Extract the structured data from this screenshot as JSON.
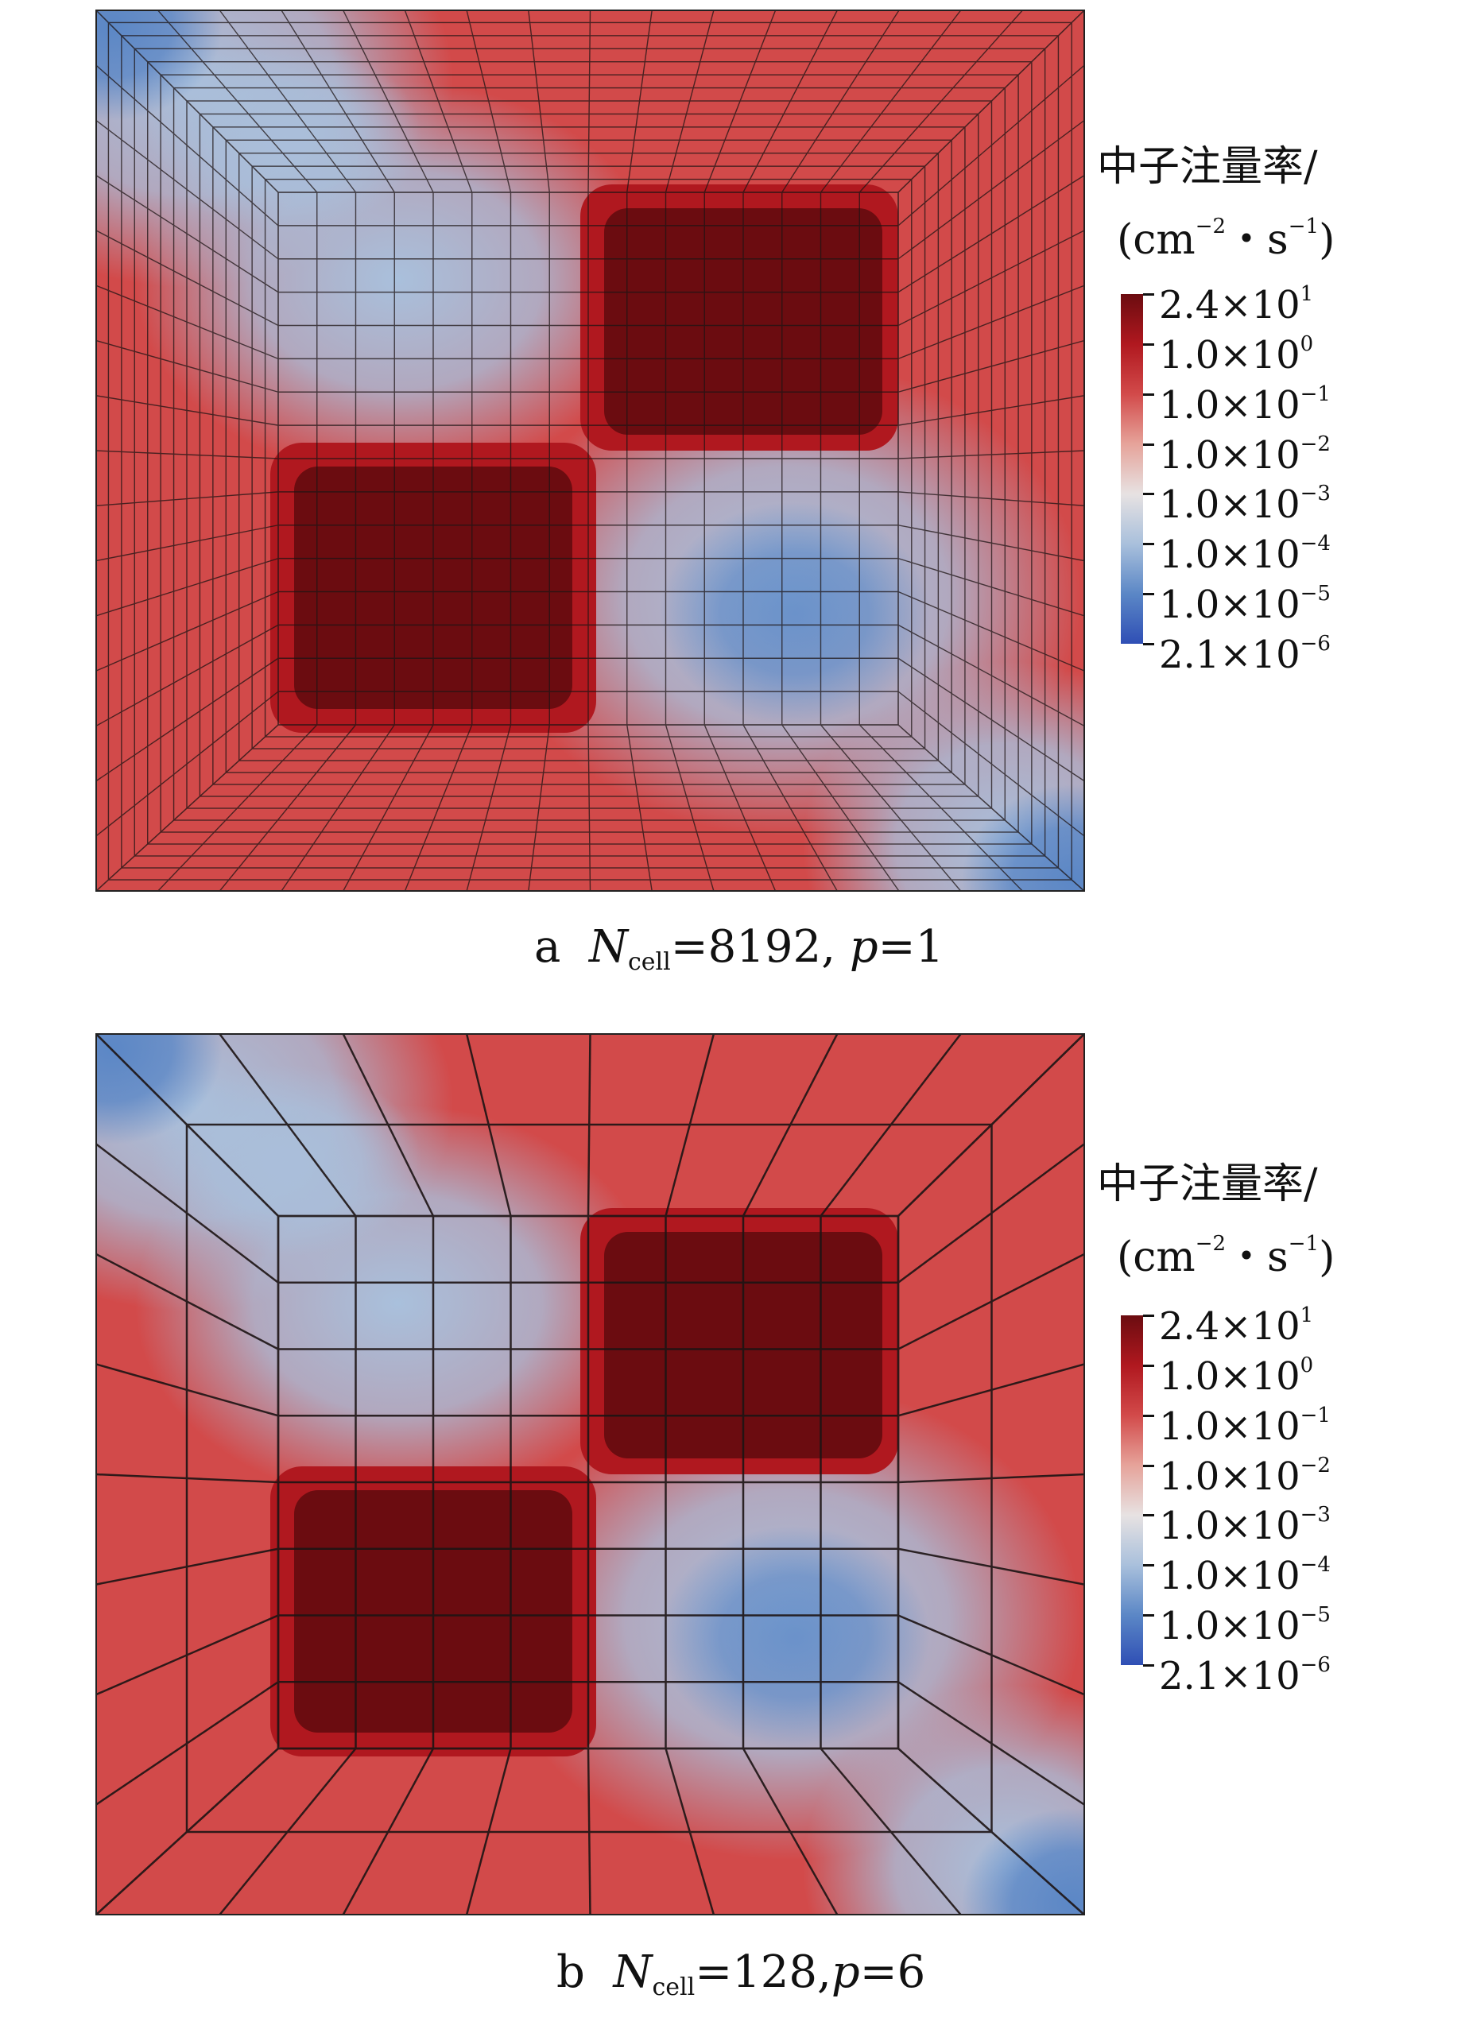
{
  "chart_data": [
    {
      "type": "heatmap",
      "panel_label": "a",
      "caption": {
        "letter": "a",
        "var_symbol": "N",
        "var_subscript": "cell",
        "var_value": "=8192,",
        "param_symbol": "p",
        "param_value": "=1"
      },
      "colorbar": {
        "title": "中子注量率/",
        "unit_open": "(cm",
        "unit_exp1": "−2",
        "unit_mid": "・s",
        "unit_exp2": "−1",
        "unit_close": ")",
        "ticks": [
          {
            "mantissa": "2.4",
            "times": "×",
            "base": "10",
            "exponent": "1"
          },
          {
            "mantissa": "1.0",
            "times": "×",
            "base": "10",
            "exponent": "0"
          },
          {
            "mantissa": "1.0",
            "times": "×",
            "base": "10",
            "exponent": "−1"
          },
          {
            "mantissa": "1.0",
            "times": "×",
            "base": "10",
            "exponent": "−2"
          },
          {
            "mantissa": "1.0",
            "times": "×",
            "base": "10",
            "exponent": "−3"
          },
          {
            "mantissa": "1.0",
            "times": "×",
            "base": "10",
            "exponent": "−4"
          },
          {
            "mantissa": "1.0",
            "times": "×",
            "base": "10",
            "exponent": "−5"
          },
          {
            "mantissa": "2.1",
            "times": "×",
            "base": "10",
            "exponent": "−6"
          }
        ],
        "colormap": [
          "#6b0c10",
          "#b0181f",
          "#d24a4a",
          "#e6a39a",
          "#e7e2e2",
          "#a9c0dc",
          "#5b87c6",
          "#2f4fb5"
        ]
      },
      "regions": {
        "high_flux": [
          "upper-right square",
          "lower-left square"
        ],
        "low_flux": [
          "upper-left square",
          "lower-right square",
          "top-left corner",
          "bottom-right corner"
        ]
      }
    },
    {
      "type": "heatmap",
      "panel_label": "b",
      "caption": {
        "letter": "b",
        "var_symbol": "N",
        "var_subscript": "cell",
        "var_value": "=128,",
        "param_symbol": "p",
        "param_value": "=6"
      },
      "colorbar": {
        "title": "中子注量率/",
        "unit_open": "(cm",
        "unit_exp1": "−2",
        "unit_mid": "・s",
        "unit_exp2": "−1",
        "unit_close": ")",
        "ticks": [
          {
            "mantissa": "2.4",
            "times": "×",
            "base": "10",
            "exponent": "1"
          },
          {
            "mantissa": "1.0",
            "times": "×",
            "base": "10",
            "exponent": "0"
          },
          {
            "mantissa": "1.0",
            "times": "×",
            "base": "10",
            "exponent": "−1"
          },
          {
            "mantissa": "1.0",
            "times": "×",
            "base": "10",
            "exponent": "−2"
          },
          {
            "mantissa": "1.0",
            "times": "×",
            "base": "10",
            "exponent": "−3"
          },
          {
            "mantissa": "1.0",
            "times": "×",
            "base": "10",
            "exponent": "−4"
          },
          {
            "mantissa": "1.0",
            "times": "×",
            "base": "10",
            "exponent": "−5"
          },
          {
            "mantissa": "2.1",
            "times": "×",
            "base": "10",
            "exponent": "−6"
          }
        ],
        "colormap": [
          "#6b0c10",
          "#b0181f",
          "#d24a4a",
          "#e6a39a",
          "#e7e2e2",
          "#a9c0dc",
          "#5b87c6",
          "#2f4fb5"
        ]
      },
      "regions": {
        "high_flux": [
          "upper-right square",
          "lower-left square"
        ],
        "low_flux": [
          "upper-left square",
          "lower-right square",
          "top-left corner",
          "bottom-right corner"
        ]
      }
    }
  ]
}
